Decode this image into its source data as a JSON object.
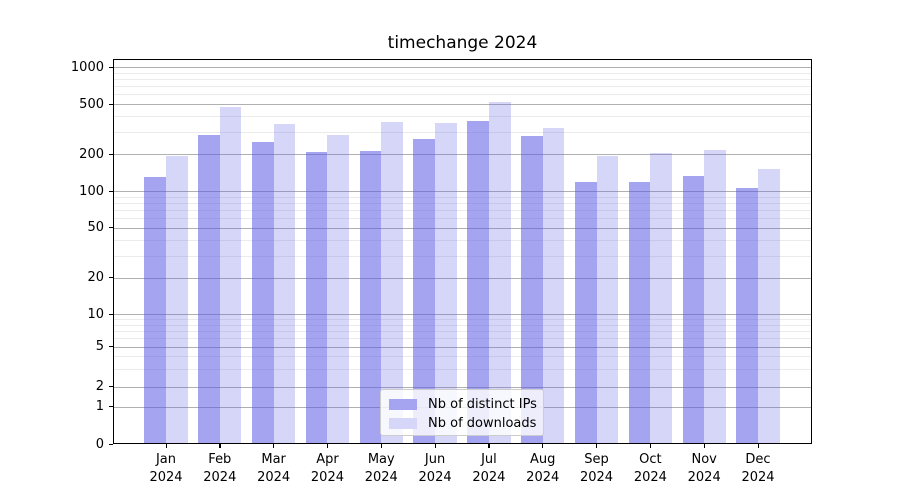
{
  "chart_data": {
    "type": "bar",
    "title": "timechange 2024",
    "y_scale": "log-1-2-5",
    "ylim": [
      0,
      1150
    ],
    "grid": "horizontal major and minor, axisbelow with translucent bars",
    "legend_position": "bottom-center",
    "y_ticks": [
      0,
      1,
      2,
      5,
      10,
      20,
      50,
      100,
      200,
      500,
      1000
    ],
    "y_minor_gridlines": [
      3,
      4,
      6,
      7,
      8,
      9,
      30,
      40,
      60,
      70,
      80,
      90,
      300,
      400,
      600,
      700,
      800,
      900
    ],
    "x_labels": [
      {
        "month": "Jan",
        "year": "2024"
      },
      {
        "month": "Feb",
        "year": "2024"
      },
      {
        "month": "Mar",
        "year": "2024"
      },
      {
        "month": "Apr",
        "year": "2024"
      },
      {
        "month": "May",
        "year": "2024"
      },
      {
        "month": "Jun",
        "year": "2024"
      },
      {
        "month": "Jul",
        "year": "2024"
      },
      {
        "month": "Aug",
        "year": "2024"
      },
      {
        "month": "Sep",
        "year": "2024"
      },
      {
        "month": "Oct",
        "year": "2024"
      },
      {
        "month": "Nov",
        "year": "2024"
      },
      {
        "month": "Dec",
        "year": "2024"
      }
    ],
    "series": [
      {
        "name": "Nb of distinct IPs",
        "key": "distinct-ips",
        "fill": "rgba(90,90,230,0.55)",
        "swatch": "#a4a4f1",
        "values": [
          130,
          285,
          249,
          207,
          212,
          265,
          368,
          278,
          118,
          118,
          134,
          106
        ]
      },
      {
        "name": "Nb of downloads",
        "key": "downloads",
        "fill": "rgba(90,90,230,0.25)",
        "swatch": "#d6d6f9",
        "values": [
          193,
          478,
          348,
          285,
          360,
          357,
          524,
          322,
          195,
          206,
          216,
          152
        ]
      }
    ],
    "colors": {
      "bar_base": "#5a5ae6",
      "grid_major": "#b0b0b0",
      "axis": "#000000"
    }
  }
}
